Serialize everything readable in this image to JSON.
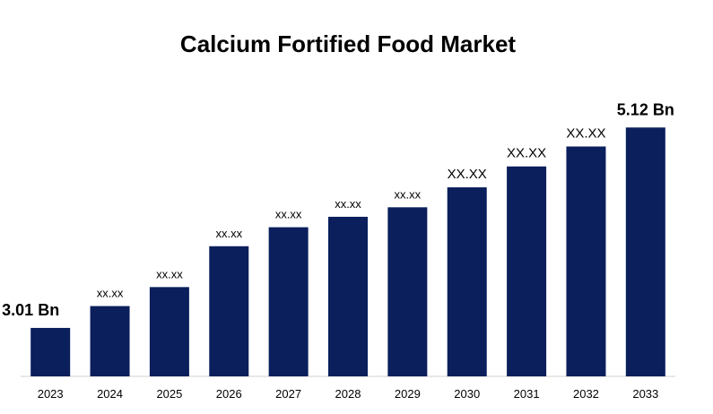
{
  "chart_data": {
    "type": "bar",
    "title": "Calcium Fortified Food Market",
    "categories": [
      "2023",
      "2024",
      "2025",
      "2026",
      "2027",
      "2028",
      "2029",
      "2030",
      "2031",
      "2032",
      "2033"
    ],
    "values": [
      3.01,
      3.24,
      3.44,
      3.87,
      4.07,
      4.18,
      4.28,
      4.49,
      4.71,
      4.92,
      5.12
    ],
    "value_labels": [
      "3.01 Bn",
      "xx.xx",
      "xx.xx",
      "xx.xx",
      "xx.xx",
      "xx.xx",
      "xx.xx",
      "XX.XX",
      "XX.XX",
      "XX.XX",
      "5.12 Bn"
    ],
    "color": "#0a1f5c",
    "ylim": [
      2.5,
      5.5
    ]
  }
}
